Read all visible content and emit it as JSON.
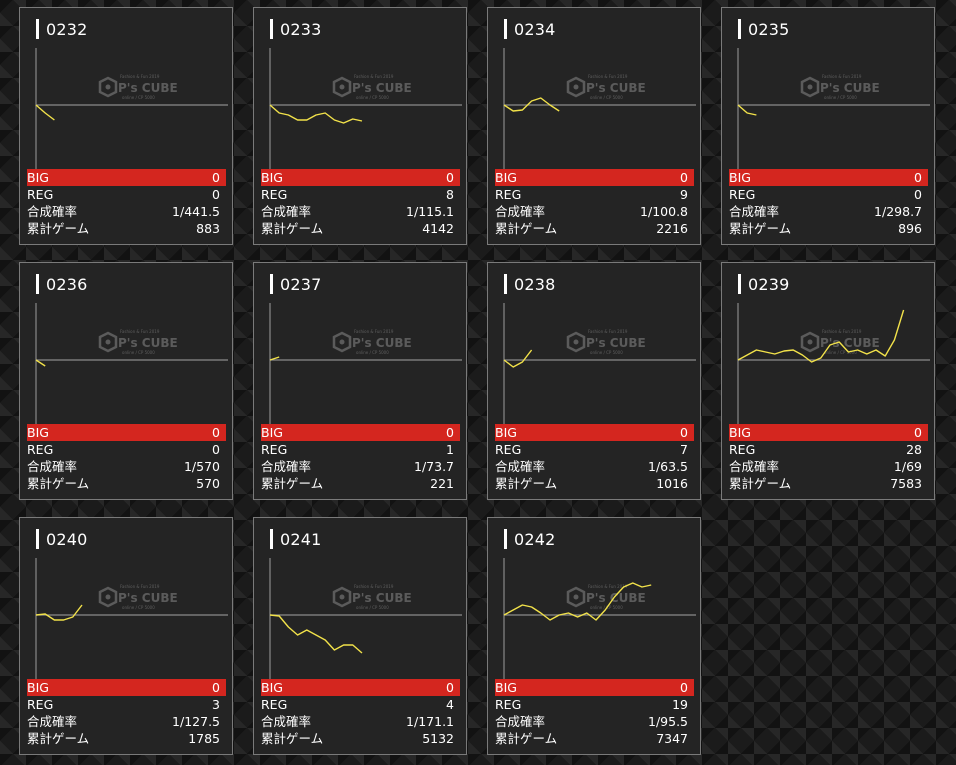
{
  "labels": {
    "big": "BIG",
    "reg": "REG",
    "rate": "合成確率",
    "games": "累計ゲーム"
  },
  "watermark": {
    "brand": "P's CUBE",
    "top_line": "Fashion & Fun 2019",
    "bottom_line": "online / CP 5000"
  },
  "colors": {
    "line": "#f2e24a",
    "big_bar": "#d4261f",
    "axis": "#8a8a8a"
  },
  "machines": [
    {
      "id": "0232",
      "big": "0",
      "reg": "0",
      "rate": "1/441.5",
      "games": "883",
      "trend": [
        0,
        -8,
        -15
      ]
    },
    {
      "id": "0233",
      "big": "0",
      "reg": "8",
      "rate": "1/115.1",
      "games": "4142",
      "trend": [
        0,
        -8,
        -10,
        -15,
        -15,
        -10,
        -8,
        -15,
        -18,
        -14,
        -16
      ]
    },
    {
      "id": "0234",
      "big": "0",
      "reg": "9",
      "rate": "1/100.8",
      "games": "2216",
      "trend": [
        0,
        -6,
        -5,
        4,
        7,
        0,
        -6
      ]
    },
    {
      "id": "0235",
      "big": "0",
      "reg": "0",
      "rate": "1/298.7",
      "games": "896",
      "trend": [
        0,
        -8,
        -10
      ]
    },
    {
      "id": "0236",
      "big": "0",
      "reg": "0",
      "rate": "1/570",
      "games": "570",
      "trend": [
        0,
        -6
      ]
    },
    {
      "id": "0237",
      "big": "0",
      "reg": "1",
      "rate": "1/73.7",
      "games": "221",
      "trend": [
        0,
        3
      ]
    },
    {
      "id": "0238",
      "big": "0",
      "reg": "7",
      "rate": "1/63.5",
      "games": "1016",
      "trend": [
        0,
        -7,
        -2,
        10
      ]
    },
    {
      "id": "0239",
      "big": "0",
      "reg": "28",
      "rate": "1/69",
      "games": "7583",
      "trend": [
        0,
        5,
        10,
        8,
        6,
        9,
        10,
        5,
        -2,
        2,
        15,
        18,
        8,
        10,
        6,
        10,
        4,
        20,
        50
      ]
    },
    {
      "id": "0240",
      "big": "0",
      "reg": "3",
      "rate": "1/127.5",
      "games": "1785",
      "trend": [
        0,
        1,
        -5,
        -5,
        -2,
        10
      ]
    },
    {
      "id": "0241",
      "big": "0",
      "reg": "4",
      "rate": "1/171.1",
      "games": "5132",
      "trend": [
        0,
        -1,
        -12,
        -20,
        -15,
        -20,
        -25,
        -35,
        -30,
        -30,
        -38
      ]
    },
    {
      "id": "0242",
      "big": "0",
      "reg": "19",
      "rate": "1/95.5",
      "games": "7347",
      "trend": [
        0,
        5,
        10,
        8,
        2,
        -5,
        0,
        2,
        -2,
        2,
        -5,
        5,
        18,
        28,
        32,
        28,
        30
      ]
    }
  ]
}
